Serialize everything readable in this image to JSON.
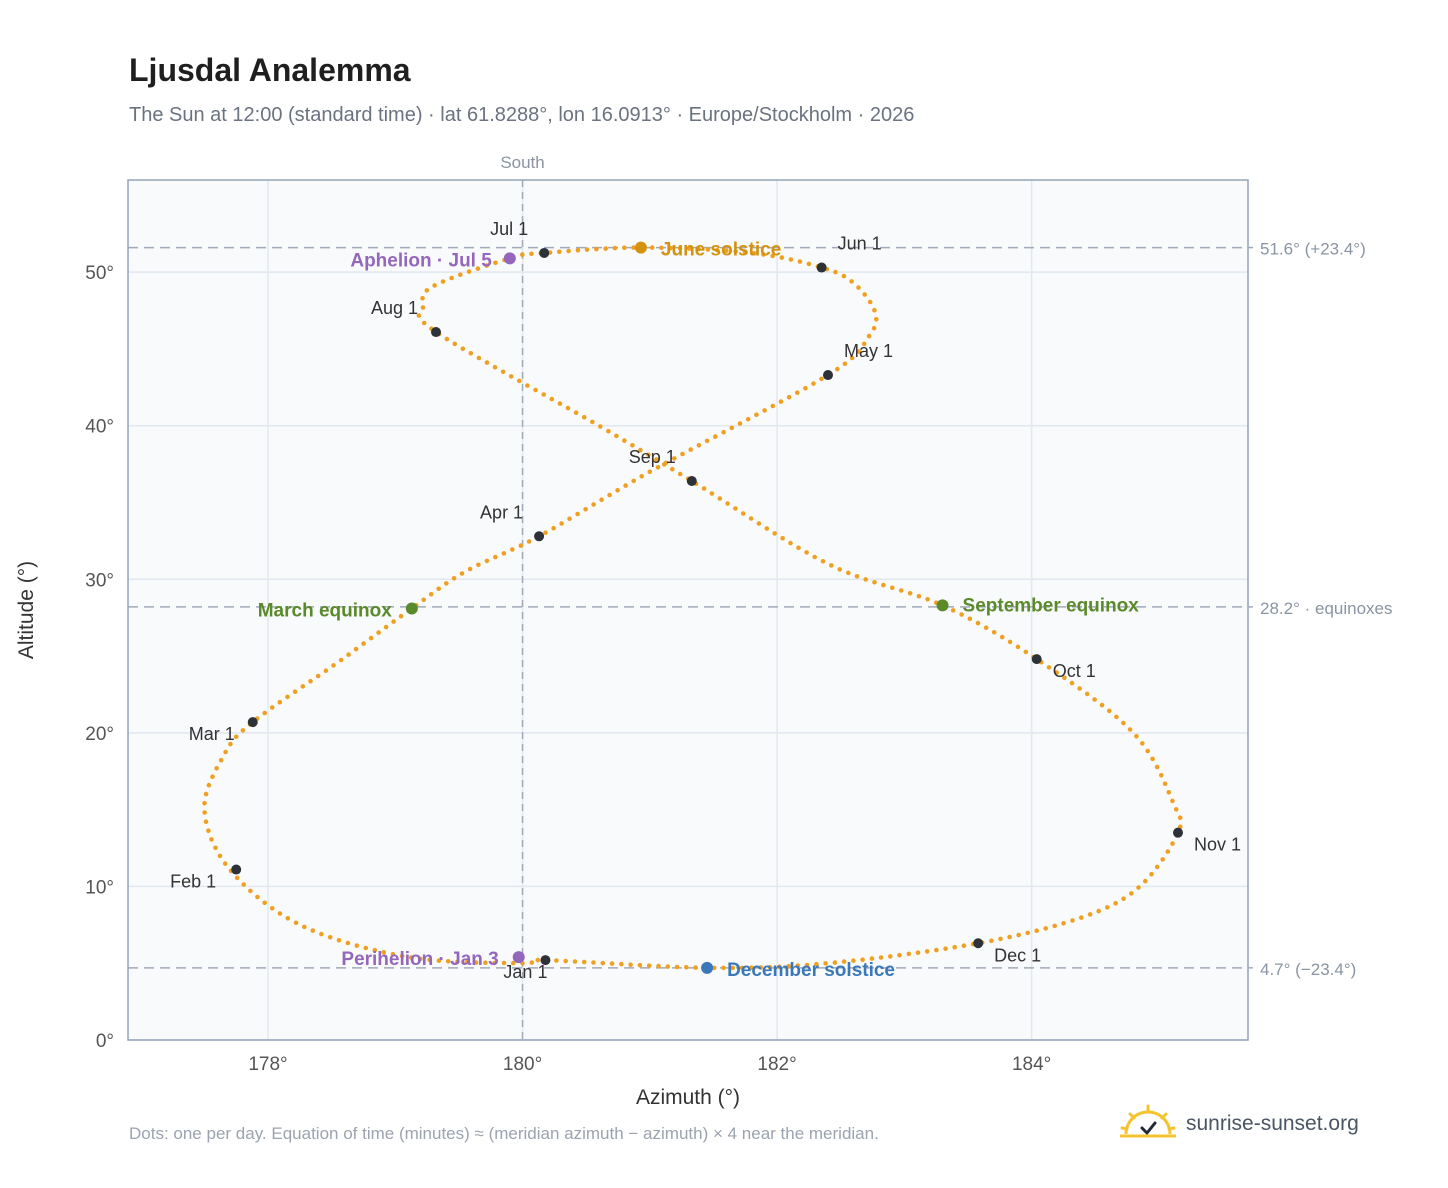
{
  "header": {
    "title": "Ljusdal Analemma",
    "subtitle": "The Sun at 12:00 (standard time) · lat 61.8288°, lon 16.0913° · Europe/Stockholm · 2026"
  },
  "footer": {
    "note": "Dots: one per day. Equation of time (minutes) ≈ (meridian azimuth − azimuth) × 4 near the meridian.",
    "brand": "sunrise-sunset.org"
  },
  "chart_data": {
    "type": "scatter",
    "xlabel": "Azimuth (°)",
    "ylabel": "Altitude (°)",
    "xlim": [
      176.9,
      185.7
    ],
    "ylim": [
      0,
      56
    ],
    "xticks": [
      178,
      180,
      182,
      184
    ],
    "xtick_labels": [
      "178°",
      "180°",
      "182°",
      "184°"
    ],
    "yticks": [
      0,
      10,
      20,
      30,
      40,
      50
    ],
    "ytick_labels": [
      "0°",
      "10°",
      "20°",
      "30°",
      "40°",
      "50°"
    ],
    "grid": true,
    "meridian": {
      "azimuth": 180,
      "label": "South"
    },
    "reference_lines": [
      {
        "altitude": 51.6,
        "label": "51.6° (+23.4°)"
      },
      {
        "altitude": 28.2,
        "label": "28.2° · equinoxes"
      },
      {
        "altitude": 4.7,
        "label": "4.7° (−23.4°)"
      }
    ],
    "series": [
      {
        "type": "daily-dots",
        "color": "#f0a020",
        "points": [
          [
            180.0,
            5.0
          ],
          [
            179.1,
            5.4
          ],
          [
            178.25,
            7.5
          ],
          [
            177.7,
            11.1
          ],
          [
            177.5,
            15.0
          ],
          [
            177.65,
            18.5
          ],
          [
            177.88,
            20.7
          ],
          [
            178.55,
            24.6
          ],
          [
            179.13,
            28.1
          ],
          [
            179.55,
            30.5
          ],
          [
            180.13,
            32.8
          ],
          [
            181.0,
            37.0
          ],
          [
            182.4,
            43.3
          ],
          [
            182.72,
            45.8
          ],
          [
            182.77,
            47.4
          ],
          [
            182.6,
            49.3
          ],
          [
            182.35,
            50.3
          ],
          [
            181.8,
            51.25
          ],
          [
            180.93,
            51.6
          ],
          [
            180.17,
            51.25
          ],
          [
            179.9,
            50.9
          ],
          [
            179.3,
            49.1
          ],
          [
            179.22,
            47.8
          ],
          [
            179.32,
            46.1
          ],
          [
            180.6,
            40.0
          ],
          [
            181.33,
            36.4
          ],
          [
            182.4,
            31.0
          ],
          [
            183.3,
            28.3
          ],
          [
            184.04,
            24.8
          ],
          [
            184.8,
            20.0
          ],
          [
            185.12,
            15.3
          ],
          [
            185.15,
            13.5
          ],
          [
            184.85,
            10.0
          ],
          [
            184.4,
            8.0
          ],
          [
            183.58,
            6.3
          ],
          [
            182.4,
            5.0
          ],
          [
            181.45,
            4.7
          ],
          [
            180.18,
            5.2
          ],
          [
            180.0,
            5.0
          ]
        ]
      }
    ],
    "month_markers": [
      {
        "label": "Jan 1",
        "x": 180.18,
        "y": 5.2
      },
      {
        "label": "Feb 1",
        "x": 177.75,
        "y": 11.1
      },
      {
        "label": "Mar 1",
        "x": 177.88,
        "y": 20.7
      },
      {
        "label": "Apr 1",
        "x": 180.13,
        "y": 32.8
      },
      {
        "label": "May 1",
        "x": 182.4,
        "y": 43.3
      },
      {
        "label": "Jun 1",
        "x": 182.35,
        "y": 50.3
      },
      {
        "label": "Jul 1",
        "x": 180.17,
        "y": 51.25
      },
      {
        "label": "Aug 1",
        "x": 179.32,
        "y": 46.1
      },
      {
        "label": "Sep 1",
        "x": 181.33,
        "y": 36.4
      },
      {
        "label": "Oct 1",
        "x": 184.04,
        "y": 24.8
      },
      {
        "label": "Nov 1",
        "x": 185.15,
        "y": 13.5
      },
      {
        "label": "Dec 1",
        "x": 183.58,
        "y": 6.3
      }
    ],
    "events": [
      {
        "label": "June solstice",
        "x": 180.93,
        "y": 51.6,
        "color": "#d4920f"
      },
      {
        "label": "Aphelion · Jul 5",
        "x": 179.9,
        "y": 50.9,
        "color": "#9467bd"
      },
      {
        "label": "March equinox",
        "x": 179.13,
        "y": 28.1,
        "color": "#5a8a2a"
      },
      {
        "label": "September equinox",
        "x": 183.3,
        "y": 28.3,
        "color": "#5a8a2a"
      },
      {
        "label": "Perihelion · Jan 3",
        "x": 179.97,
        "y": 5.4,
        "color": "#9467bd"
      },
      {
        "label": "December solstice",
        "x": 181.45,
        "y": 4.7,
        "color": "#3a78b8"
      }
    ]
  }
}
